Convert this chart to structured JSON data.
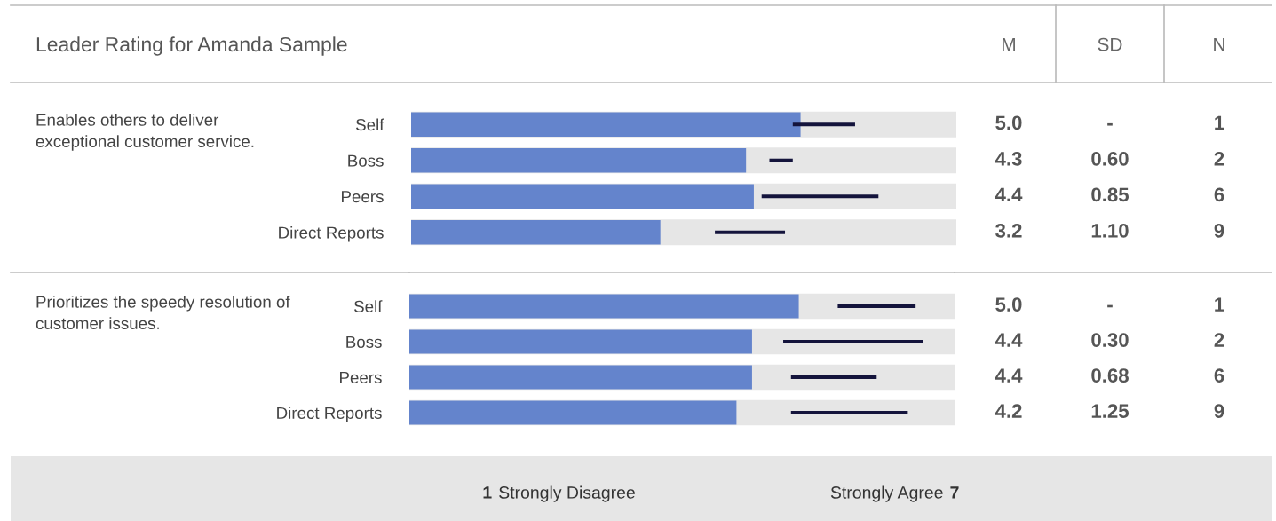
{
  "chart_data": [
    {
      "type": "bar",
      "orientation": "horizontal",
      "title": "Leader Rating for Amanda Sample",
      "subtitle": "Enables others to deliver exceptional customer service.",
      "categories": [
        "Self",
        "Boss",
        "Peers",
        "Direct Reports"
      ],
      "xlim": [
        0,
        7
      ],
      "tick_labels": "y",
      "grid": false,
      "legend": false,
      "series": [
        {
          "color": "#6484cc",
          "values": [
            5.0,
            4.3,
            4.4,
            3.2
          ],
          "value_labels": [
            "5.0",
            "4.3",
            "4.4",
            "3.2"
          ]
        },
        {
          "color": "#14143c",
          "base": [
            4.9,
            4.6,
            4.5,
            3.9
          ],
          "values": [
            0.8,
            0.3,
            1.5,
            0.9
          ]
        }
      ],
      "annotations": [
        "M",
        "SD",
        "N",
        "-",
        "1",
        "0.60",
        "2",
        "0.85",
        "6",
        "1.10",
        "9"
      ]
    },
    {
      "type": "bar",
      "orientation": "horizontal",
      "subtitle": "Prioritizes the speedy resolution of customer issues.",
      "categories": [
        "Self",
        "Boss",
        "Peers",
        "Direct Reports"
      ],
      "xlim": [
        0,
        7
      ],
      "xticks": [
        1,
        7
      ],
      "grid": false,
      "legend": false,
      "series": [
        {
          "color": "#6484cc",
          "values": [
            5.0,
            4.4,
            4.4,
            4.2
          ],
          "value_labels": [
            "5.0",
            "4.4",
            "4.4",
            "4.2"
          ]
        },
        {
          "color": "#14143c",
          "base": [
            5.5,
            4.8,
            4.9,
            4.9
          ],
          "values": [
            1.0,
            1.8,
            1.1,
            1.5
          ]
        }
      ],
      "annotations": [
        "-",
        "1",
        "0.30",
        "2",
        "0.68",
        "6",
        "1.25",
        "9",
        "Strongly Disagree",
        "Strongly Agree"
      ]
    }
  ]
}
